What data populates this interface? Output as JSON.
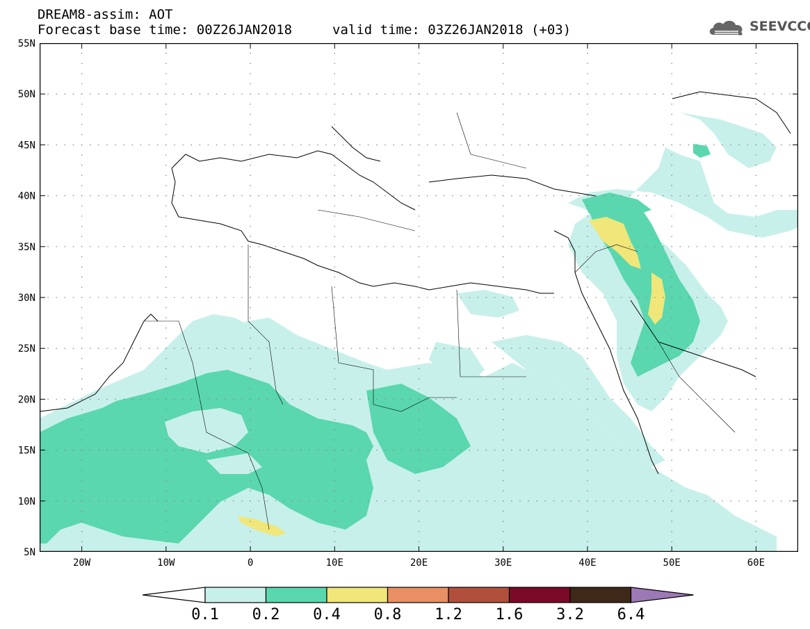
{
  "header": {
    "title": "DREAM8-assim: AOT",
    "base_time": "Forecast base time: 00Z26JAN2018",
    "valid_time": "valid time: 03Z26JAN2018 (+03)"
  },
  "logo": {
    "text": "SEEVCCC",
    "icon": "cloud-icon"
  },
  "map": {
    "lon_range": [
      -25,
      65
    ],
    "lat_range": [
      5,
      55
    ],
    "lat_ticks": [
      "55N",
      "50N",
      "45N",
      "40N",
      "35N",
      "30N",
      "25N",
      "20N",
      "15N",
      "10N",
      "5N"
    ],
    "lon_ticks": [
      "20W",
      "10W",
      "0",
      "10E",
      "20E",
      "30E",
      "40E",
      "50E",
      "60E"
    ]
  },
  "colorbar": {
    "labels": [
      "0.1",
      "0.2",
      "0.4",
      "0.8",
      "1.2",
      "1.6",
      "3.2",
      "6.4"
    ],
    "colors": [
      "#c8f0ea",
      "#5ad7ae",
      "#f0e67a",
      "#e89064",
      "#b0503c",
      "#7a0a28",
      "#3e2818",
      "#9c78b4"
    ]
  }
}
